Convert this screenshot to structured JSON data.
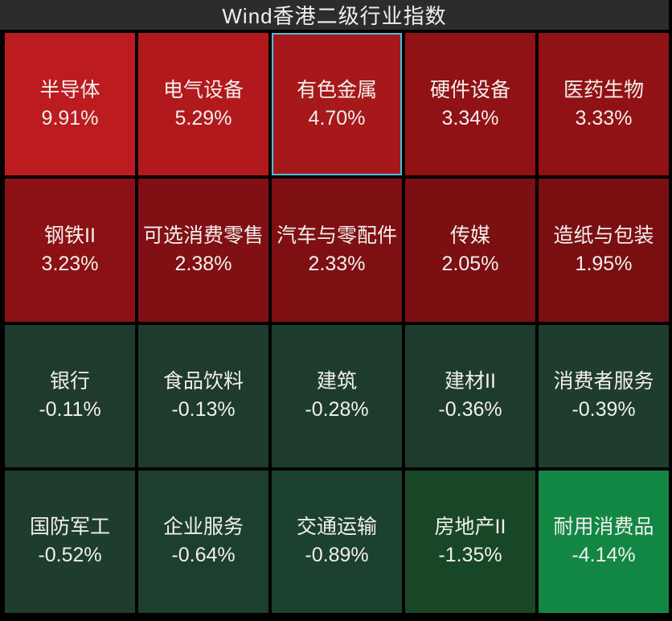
{
  "header": {
    "title": "Wind香港二级行业指数"
  },
  "colors": {
    "background": "#000000",
    "title_bar": "#2c2c2c",
    "title_text": "#efefef",
    "cell_text": "#f2efec",
    "selection_border": "#4cc0d8",
    "gutter": "#000000"
  },
  "chart_data": {
    "type": "heatmap",
    "title": "Wind香港二级行业指数",
    "columns": 5,
    "rows": 4,
    "unit": "%",
    "legend_position": "none",
    "cells": [
      {
        "name": "半导体",
        "value": 9.91,
        "value_label": "9.91%",
        "color": "#bc1b20",
        "selected": false
      },
      {
        "name": "电气设备",
        "value": 5.29,
        "value_label": "5.29%",
        "color": "#b2191d",
        "selected": false
      },
      {
        "name": "有色金属",
        "value": 4.7,
        "value_label": "4.70%",
        "color": "#a6181a",
        "selected": true
      },
      {
        "name": "硬件设备",
        "value": 3.34,
        "value_label": "3.34%",
        "color": "#901215",
        "selected": false
      },
      {
        "name": "医药生物",
        "value": 3.33,
        "value_label": "3.33%",
        "color": "#901215",
        "selected": false
      },
      {
        "name": "钢铁II",
        "value": 3.23,
        "value_label": "3.23%",
        "color": "#8c1114",
        "selected": false
      },
      {
        "name": "可选消费零售",
        "value": 2.38,
        "value_label": "2.38%",
        "color": "#801013",
        "selected": false
      },
      {
        "name": "汽车与零配件",
        "value": 2.33,
        "value_label": "2.33%",
        "color": "#7e1013",
        "selected": false
      },
      {
        "name": "传媒",
        "value": 2.05,
        "value_label": "2.05%",
        "color": "#7b0f12",
        "selected": false
      },
      {
        "name": "造纸与包装",
        "value": 1.95,
        "value_label": "1.95%",
        "color": "#7a0f12",
        "selected": false
      },
      {
        "name": "银行",
        "value": -0.11,
        "value_label": "-0.11%",
        "color": "#1e3b2b",
        "selected": false
      },
      {
        "name": "食品饮料",
        "value": -0.13,
        "value_label": "-0.13%",
        "color": "#1e3b2b",
        "selected": false
      },
      {
        "name": "建筑",
        "value": -0.28,
        "value_label": "-0.28%",
        "color": "#1e3c2c",
        "selected": false
      },
      {
        "name": "建材II",
        "value": -0.36,
        "value_label": "-0.36%",
        "color": "#1e3c2c",
        "selected": false
      },
      {
        "name": "消费者服务",
        "value": -0.39,
        "value_label": "-0.39%",
        "color": "#1e3d2c",
        "selected": false
      },
      {
        "name": "国防军工",
        "value": -0.52,
        "value_label": "-0.52%",
        "color": "#1e3d2c",
        "selected": false
      },
      {
        "name": "企业服务",
        "value": -0.64,
        "value_label": "-0.64%",
        "color": "#1d3f2d",
        "selected": false
      },
      {
        "name": "交通运输",
        "value": -0.89,
        "value_label": "-0.89%",
        "color": "#1c412e",
        "selected": false
      },
      {
        "name": "房地产II",
        "value": -1.35,
        "value_label": "-1.35%",
        "color": "#184728",
        "selected": false
      },
      {
        "name": "耐用消费品",
        "value": -4.14,
        "value_label": "-4.14%",
        "color": "#128743",
        "selected": false
      }
    ]
  }
}
